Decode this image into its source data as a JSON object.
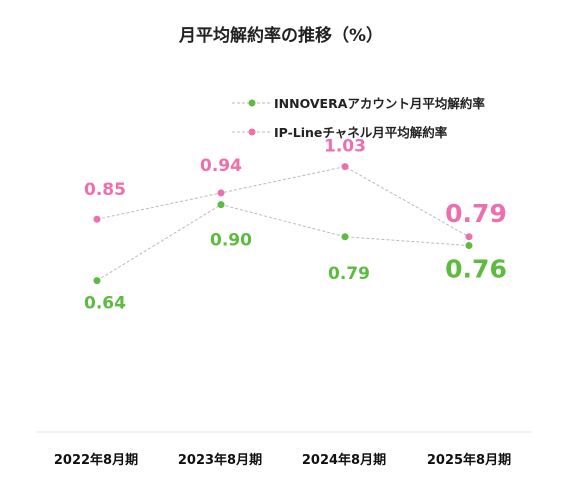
{
  "chart_data": {
    "type": "line",
    "title": "月平均解約率の推移（%）",
    "categories": [
      "2022年8月期",
      "2023年8月期",
      "2024年8月期",
      "2025年8月期"
    ],
    "series": [
      {
        "name": "INNOVERAアカウント月平均解約率",
        "color": "#5dbb3f",
        "values": [
          0.64,
          0.9,
          0.79,
          0.76
        ],
        "labels": [
          "0.64",
          "0.90",
          "0.79",
          "0.76"
        ]
      },
      {
        "name": "IP-Lineチャネル月平均解約率",
        "color": "#ee6fae",
        "values": [
          0.85,
          0.94,
          1.03,
          0.79
        ],
        "labels": [
          "0.85",
          "0.94",
          "1.03",
          "0.79"
        ]
      }
    ],
    "ylim": [
      0.3,
      1.08
    ],
    "legend": "top-right",
    "grid": false,
    "line_color": "#bbbbbb"
  }
}
